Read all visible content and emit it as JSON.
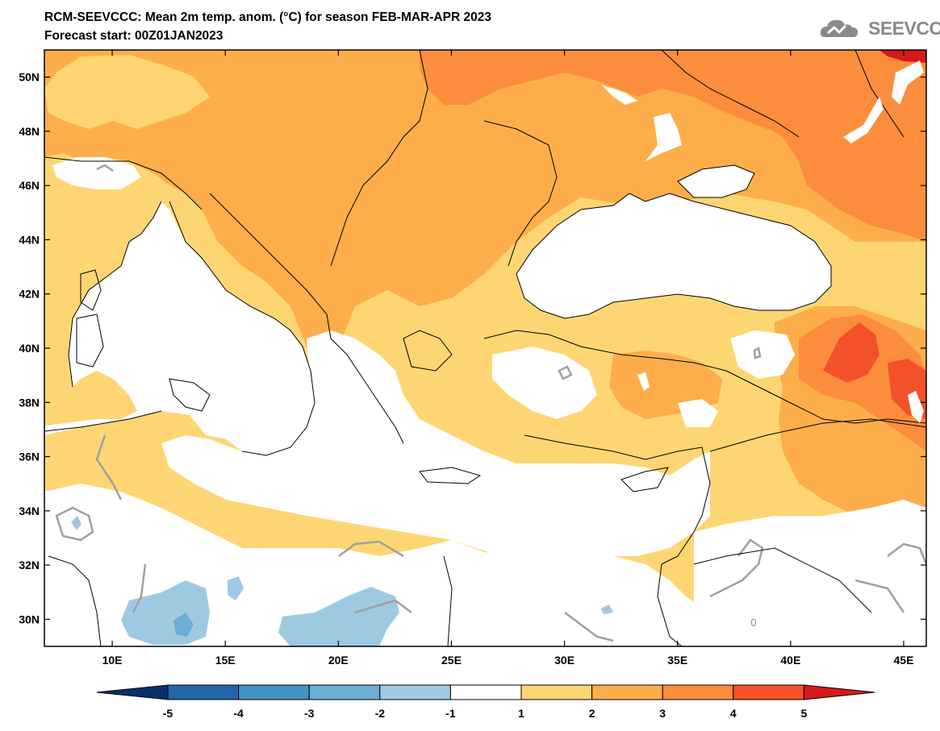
{
  "header": {
    "title_line1": "RCM-SEEVCCC: Mean 2m temp. anom. (°C) for season FEB-MAR-APR 2023",
    "title_line2": "Forecast start: 00Z01JAN2023"
  },
  "logo": {
    "text": "SEEVCCC",
    "icon": "cloud-icon"
  },
  "map": {
    "lon_range": [
      7,
      46
    ],
    "lat_range": [
      29,
      51
    ],
    "lat_labels": [
      "50N",
      "48N",
      "46N",
      "44N",
      "42N",
      "40N",
      "38N",
      "36N",
      "34N",
      "32N",
      "30N"
    ],
    "lon_labels": [
      "10E",
      "15E",
      "20E",
      "25E",
      "30E",
      "35E",
      "40E",
      "45E"
    ]
  },
  "colorbar": {
    "labels": [
      "-5",
      "-4",
      "-3",
      "-2",
      "-1",
      "1",
      "2",
      "3",
      "4",
      "5"
    ],
    "colors": [
      "#08306b",
      "#2166ac",
      "#4393c3",
      "#6baed6",
      "#9ecae1",
      "#ffffff",
      "#fdd673",
      "#fdae4b",
      "#fc8d3c",
      "#f4512a",
      "#d7191c"
    ]
  },
  "colors": {
    "anom_1_2": "#fdd673",
    "anom_2_3": "#fdae4b",
    "anom_3_4": "#fc8d3c",
    "anom_4_5": "#f4512a",
    "anom_gt5": "#d7191c",
    "anom_m1_m2": "#9ecae1",
    "anom_m2_m3": "#6baed6",
    "sea": "#ffffff",
    "contour_zero": "#a0a0a0"
  },
  "annotations": {
    "zero_contour_label": "0"
  }
}
